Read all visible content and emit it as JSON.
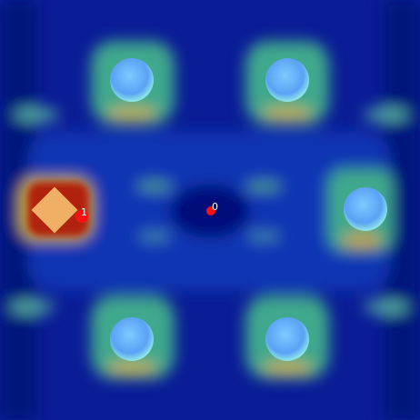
{
  "markers": [
    {
      "label": "0"
    },
    {
      "label": "1"
    }
  ]
}
